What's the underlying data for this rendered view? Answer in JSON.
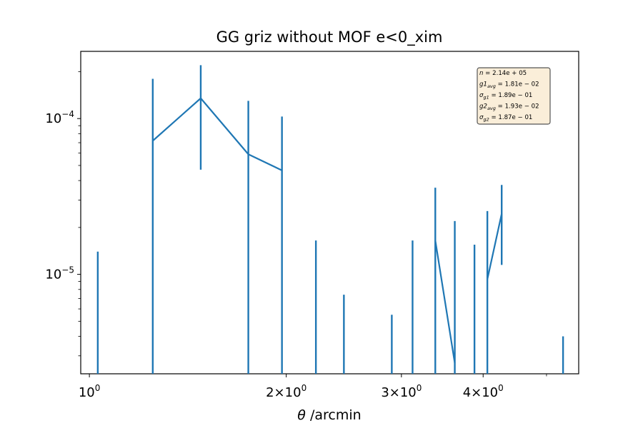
{
  "chart_data": {
    "type": "line",
    "title": "GG griz without MOF e<0_xim",
    "xlabel_symbol": "θ",
    "xlabel_text": " /arcmin",
    "ylabel": "",
    "x_scale": "log",
    "y_scale": "log",
    "xlim": [
      0.97,
      5.6
    ],
    "ylim": [
      2.3e-06,
      0.00027
    ],
    "x_ticks": [
      {
        "value": 1,
        "base": "10",
        "exp": "0"
      },
      {
        "value": 2,
        "base": "2×10",
        "exp": "0"
      },
      {
        "value": 3,
        "base": "3×10",
        "exp": "0"
      },
      {
        "value": 4,
        "base": "4×10",
        "exp": "0"
      }
    ],
    "y_ticks": [
      {
        "value": 1e-05,
        "base": "10",
        "exp": "−5"
      },
      {
        "value": 0.0001,
        "base": "10",
        "exp": "−4"
      }
    ],
    "color": "#1f77b4",
    "series": [
      {
        "line_points": [
          {
            "x": 1.25,
            "y": 7.2e-05
          },
          {
            "x": 1.48,
            "y": 0.000135
          },
          {
            "x": 1.75,
            "y": 5.9e-05
          },
          {
            "x": 1.97,
            "y": 4.65e-05
          },
          {
            "x": null,
            "y": null
          },
          {
            "x": 3.38,
            "y": 1.65e-05
          },
          {
            "x": 3.62,
            "y": 2.7e-06
          },
          {
            "x": null,
            "y": null
          },
          {
            "x": 4.06,
            "y": 9.3e-06
          },
          {
            "x": 4.27,
            "y": 2.45e-05
          }
        ],
        "error_bars": [
          {
            "x": 1.03,
            "low": 2.3e-06,
            "high": 1.4e-05
          },
          {
            "x": 1.25,
            "low": 2.3e-06,
            "high": 0.00018
          },
          {
            "x": 1.48,
            "low": 4.7e-05,
            "high": 0.00022
          },
          {
            "x": 1.75,
            "low": 2.3e-06,
            "high": 0.00013
          },
          {
            "x": 1.97,
            "low": 2.3e-06,
            "high": 0.000103
          },
          {
            "x": 2.22,
            "low": 2.3e-06,
            "high": 1.65e-05
          },
          {
            "x": 2.45,
            "low": 2.3e-06,
            "high": 7.4e-06
          },
          {
            "x": 2.9,
            "low": 2.3e-06,
            "high": 5.5e-06
          },
          {
            "x": 3.12,
            "low": 2.3e-06,
            "high": 1.65e-05
          },
          {
            "x": 3.38,
            "low": 2.3e-06,
            "high": 3.6e-05
          },
          {
            "x": 3.62,
            "low": 2.3e-06,
            "high": 2.2e-05
          },
          {
            "x": 3.88,
            "low": 2.3e-06,
            "high": 1.55e-05
          },
          {
            "x": 4.06,
            "low": 2.3e-06,
            "high": 2.55e-05
          },
          {
            "x": 4.27,
            "low": 1.15e-05,
            "high": 3.75e-05
          },
          {
            "x": 5.3,
            "low": 2.3e-06,
            "high": 4e-06
          }
        ]
      }
    ],
    "annotation_box": {
      "placement": "top-right",
      "lines": [
        {
          "main": "n = 2.14e + 05",
          "sub": ""
        },
        {
          "main": "g1 = 1.81e − 02",
          "sub": "avg"
        },
        {
          "main": "σ = 1.89e − 01",
          "sub": "g1"
        },
        {
          "main": "g2 = 1.93e − 02",
          "sub": "avg"
        },
        {
          "main": "σ = 1.87e − 01",
          "sub": "g2"
        }
      ]
    }
  }
}
